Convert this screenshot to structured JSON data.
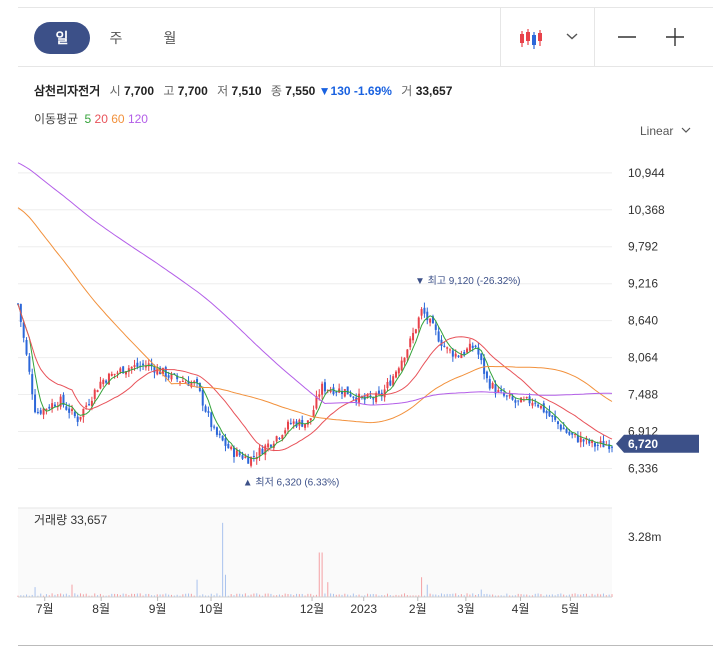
{
  "toolbar": {
    "periods": [
      "일",
      "주",
      "월"
    ],
    "active_period": "일",
    "chart_style_icon": "candlestick-icon",
    "dropdown_icon": "chevron-down-icon",
    "zoom_out_icon": "minus-icon",
    "zoom_in_icon": "plus-icon"
  },
  "stock": {
    "name": "삼천리자전거",
    "open_label": "시",
    "open": "7,700",
    "high_label": "고",
    "high": "7,700",
    "low_label": "저",
    "low": "7,510",
    "close_label": "종",
    "close": "7,550",
    "change_arrow": "▼",
    "change": "130",
    "change_pct": "-1.69%",
    "volume_label": "거",
    "volume": "33,657"
  },
  "moving_average": {
    "label": "이동평균",
    "periods": [
      "5",
      "20",
      "60",
      "120"
    ],
    "colors": [
      "#35a33a",
      "#e8535a",
      "#f2913c",
      "#b35ee8"
    ]
  },
  "scale_mode": "Linear",
  "colors": {
    "up": "#e8424a",
    "down": "#2c67d9",
    "accent": "#3c5088",
    "last_price_bg": "#3c5088"
  },
  "chart_data": {
    "type": "candlestick",
    "price_axis_ticks": [
      "10,944",
      "10,368",
      "9,792",
      "9,216",
      "8,640",
      "8,064",
      "7,488",
      "6,912",
      "6,336"
    ],
    "price_ylim": [
      6000,
      11300
    ],
    "x_ticks": [
      "7월",
      "8월",
      "9월",
      "10월",
      "12월",
      "2023",
      "2월",
      "3월",
      "4월",
      "5월"
    ],
    "last_price": "6,720",
    "high_marker": {
      "label": "최고",
      "value": "9,120",
      "pct": "(-26.32%)"
    },
    "low_marker": {
      "label": "최저",
      "value": "6,320",
      "pct": "(6.33%)"
    },
    "price_keypoints": [
      {
        "t": 0,
        "p": 8900
      },
      {
        "t": 0.03,
        "p": 7200
      },
      {
        "t": 0.07,
        "p": 7400
      },
      {
        "t": 0.1,
        "p": 7100
      },
      {
        "t": 0.14,
        "p": 7700
      },
      {
        "t": 0.18,
        "p": 7900
      },
      {
        "t": 0.22,
        "p": 7950
      },
      {
        "t": 0.26,
        "p": 7750
      },
      {
        "t": 0.3,
        "p": 7650
      },
      {
        "t": 0.33,
        "p": 6900
      },
      {
        "t": 0.36,
        "p": 6600
      },
      {
        "t": 0.39,
        "p": 6480
      },
      {
        "t": 0.42,
        "p": 6700
      },
      {
        "t": 0.46,
        "p": 7050
      },
      {
        "t": 0.49,
        "p": 7050
      },
      {
        "t": 0.51,
        "p": 7600
      },
      {
        "t": 0.55,
        "p": 7550
      },
      {
        "t": 0.58,
        "p": 7400
      },
      {
        "t": 0.61,
        "p": 7450
      },
      {
        "t": 0.63,
        "p": 7750
      },
      {
        "t": 0.66,
        "p": 8300
      },
      {
        "t": 0.68,
        "p": 8800
      },
      {
        "t": 0.7,
        "p": 8500
      },
      {
        "t": 0.72,
        "p": 8200
      },
      {
        "t": 0.74,
        "p": 8100
      },
      {
        "t": 0.77,
        "p": 8250
      },
      {
        "t": 0.79,
        "p": 7700
      },
      {
        "t": 0.81,
        "p": 7500
      },
      {
        "t": 0.84,
        "p": 7350
      },
      {
        "t": 0.87,
        "p": 7400
      },
      {
        "t": 0.9,
        "p": 7100
      },
      {
        "t": 0.93,
        "p": 6850
      },
      {
        "t": 0.97,
        "p": 6700
      },
      {
        "t": 1.0,
        "p": 6720
      }
    ],
    "volume_panel": {
      "label": "거래량",
      "value": "33,657",
      "axis_tick": "3.28m",
      "ylim": [
        0,
        3.6
      ],
      "spikes": [
        {
          "t": 0.03,
          "v": 0.4
        },
        {
          "t": 0.09,
          "v": 0.5
        },
        {
          "t": 0.3,
          "v": 0.7
        },
        {
          "t": 0.345,
          "v": 3.0
        },
        {
          "t": 0.35,
          "v": 0.9
        },
        {
          "t": 0.51,
          "v": 1.8
        },
        {
          "t": 0.52,
          "v": 0.6
        },
        {
          "t": 0.68,
          "v": 0.8
        },
        {
          "t": 0.69,
          "v": 0.5
        },
        {
          "t": 0.78,
          "v": 0.3
        }
      ]
    }
  }
}
